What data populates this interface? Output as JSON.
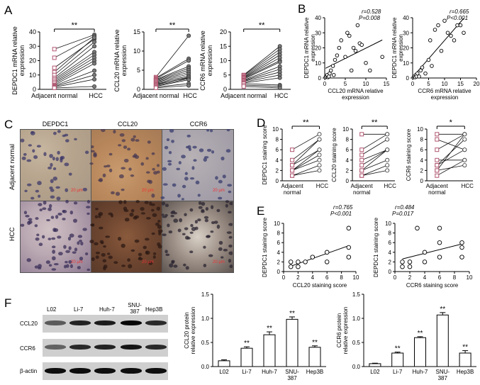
{
  "panels": {
    "A": "A",
    "B": "B",
    "C": "C",
    "D": "D",
    "E": "E",
    "F": "F"
  },
  "sig": {
    "double": "**",
    "single": "*"
  },
  "groups": {
    "adjacent_normal": "Adjacent normal",
    "adjacent": "Adjacent",
    "normal": "normal",
    "hcc": "HCC"
  },
  "colors": {
    "paired_line": "#111111",
    "normal_marker": "#cf8fa8",
    "hcc_marker": "#7a7a7a",
    "bar_fill": "#ffffff"
  },
  "chart_data": [
    {
      "id": "A1",
      "type": "scatter",
      "ylabel_1": "DEPDC1 mRNA relative",
      "ylabel_2": "expression",
      "categories": [
        "Adjacent normal",
        "HCC"
      ],
      "ylim": [
        0,
        40
      ],
      "yticks": [
        0,
        10,
        20,
        30,
        40
      ],
      "significance": "**",
      "pairs": [
        [
          28,
          38
        ],
        [
          22,
          37
        ],
        [
          15,
          35
        ],
        [
          12,
          36
        ],
        [
          10,
          33
        ],
        [
          8,
          30
        ],
        [
          7,
          26
        ],
        [
          6,
          24
        ],
        [
          5,
          22
        ],
        [
          4,
          20
        ],
        [
          3,
          18
        ],
        [
          2.5,
          13
        ],
        [
          2,
          10
        ],
        [
          1.5,
          7
        ],
        [
          1,
          2
        ]
      ]
    },
    {
      "id": "A2",
      "type": "scatter",
      "ylabel_1": "CCL20 mRNA relative",
      "ylabel_2": "expression",
      "categories": [
        "Adjacent normal",
        "HCC"
      ],
      "ylim": [
        0,
        15
      ],
      "yticks": [
        0,
        5,
        10,
        15
      ],
      "significance": "**",
      "pairs": [
        [
          3.2,
          14
        ],
        [
          3,
          8
        ],
        [
          2.8,
          7.5
        ],
        [
          2.6,
          6
        ],
        [
          2.4,
          5.5
        ],
        [
          2.2,
          5
        ],
        [
          2,
          4.5
        ],
        [
          1.8,
          4
        ],
        [
          1.6,
          3.5
        ],
        [
          1.4,
          3
        ],
        [
          1.2,
          3.2
        ],
        [
          1,
          2.8
        ],
        [
          0.8,
          2.5
        ],
        [
          0.6,
          1.5
        ],
        [
          0.4,
          1
        ]
      ],
      "xlabels": [
        "Adjacent normal",
        "HCC"
      ]
    },
    {
      "id": "A3",
      "type": "scatter",
      "ylabel_1": "CCR6 mRNA relative",
      "ylabel_2": "expression",
      "categories": [
        "Adjacent normal",
        "HCC"
      ],
      "ylim": [
        0,
        20
      ],
      "yticks": [
        0,
        5,
        10,
        15,
        20
      ],
      "significance": "**",
      "pairs": [
        [
          5,
          15
        ],
        [
          4.8,
          14
        ],
        [
          4.5,
          13
        ],
        [
          4.2,
          12
        ],
        [
          4,
          11
        ],
        [
          3.8,
          10
        ],
        [
          3.5,
          9.5
        ],
        [
          3.2,
          8
        ],
        [
          3,
          7
        ],
        [
          2.8,
          6
        ],
        [
          2.5,
          5
        ],
        [
          2.2,
          4
        ],
        [
          2,
          1.5
        ],
        [
          1.5,
          1
        ],
        [
          1,
          0.5
        ]
      ]
    },
    {
      "id": "B1",
      "type": "scatter",
      "xlabel_1": "CCL20 mRNA relative",
      "xlabel_2": "expression",
      "ylabel_1": "DEPDC1 mRNA relative",
      "ylabel_2": "expression",
      "r": "r=0.528",
      "p": "P=0.008",
      "xlim": [
        0,
        15
      ],
      "ylim": [
        0,
        40
      ],
      "xticks": [
        0,
        5,
        10,
        15
      ],
      "yticks": [
        0,
        10,
        20,
        30,
        40
      ],
      "x": [
        0.2,
        0.4,
        0.6,
        0.8,
        1,
        1.2,
        1.5,
        2,
        2.2,
        2.5,
        3,
        3.5,
        4,
        5,
        5.5,
        6,
        6.5,
        7,
        7.5,
        8,
        8.5,
        9,
        10,
        11,
        14
      ],
      "y": [
        0.5,
        1,
        2,
        0.5,
        1,
        3,
        5,
        8,
        2,
        12,
        15,
        20,
        25,
        14,
        30,
        28,
        5,
        20,
        18,
        35,
        23,
        22,
        10,
        5,
        14
      ]
    },
    {
      "id": "B2",
      "type": "scatter",
      "xlabel_1": "CCR6 mRNA relative",
      "xlabel_2": "expression",
      "ylabel_1": "DEPDC1 mRNA relative",
      "ylabel_2": "expression",
      "r": "r=0.665",
      "p": "P<0.001",
      "xlim": [
        0,
        20
      ],
      "ylim": [
        0,
        40
      ],
      "xticks": [
        0,
        5,
        10,
        15,
        20
      ],
      "yticks": [
        0,
        10,
        20,
        30,
        40
      ],
      "x": [
        0.3,
        0.5,
        0.8,
        1,
        1.2,
        1.5,
        2,
        2.5,
        3,
        4,
        5,
        5.5,
        6,
        7,
        8,
        9,
        10,
        11,
        12,
        13,
        14,
        15,
        16
      ],
      "y": [
        0.5,
        1,
        0.5,
        2,
        1,
        3,
        1,
        5,
        7,
        3,
        12,
        25,
        8,
        32,
        35,
        18,
        38,
        30,
        28,
        25,
        35,
        35,
        30
      ]
    },
    {
      "id": "D1",
      "type": "scatter",
      "ylabel": "DEPDC1 staining score",
      "categories": [
        "Adjacent",
        "HCC"
      ],
      "xsub": "normal",
      "ylim": [
        0,
        10
      ],
      "yticks": [
        0,
        2,
        4,
        6,
        8,
        10
      ],
      "significance": "**",
      "pairs": [
        [
          6,
          9
        ],
        [
          4,
          8
        ],
        [
          3,
          8
        ],
        [
          3,
          6
        ],
        [
          2,
          6
        ],
        [
          2,
          4
        ],
        [
          1,
          2
        ],
        [
          1,
          3
        ],
        [
          2,
          5
        ]
      ]
    },
    {
      "id": "D2",
      "type": "scatter",
      "ylabel": "CCL20 staining score",
      "categories": [
        "Adjacent",
        "HCC"
      ],
      "xsub": "normal",
      "ylim": [
        0,
        10
      ],
      "yticks": [
        0,
        2,
        4,
        6,
        8,
        10
      ],
      "significance": "**",
      "pairs": [
        [
          9,
          9
        ],
        [
          6,
          9
        ],
        [
          5,
          8
        ],
        [
          4,
          6
        ],
        [
          3,
          6
        ],
        [
          2,
          4
        ],
        [
          1,
          3
        ],
        [
          2,
          6
        ],
        [
          1,
          2
        ]
      ]
    },
    {
      "id": "D3",
      "type": "scatter",
      "ylabel": "CCR6 staining score",
      "categories": [
        "Adjacent",
        "HCC"
      ],
      "xsub": "normal",
      "ylim": [
        0,
        10
      ],
      "yticks": [
        0,
        2,
        4,
        6,
        8,
        10
      ],
      "significance": "*",
      "pairs": [
        [
          9,
          9
        ],
        [
          8,
          6
        ],
        [
          6,
          9
        ],
        [
          4,
          4
        ],
        [
          3,
          6
        ],
        [
          3,
          8
        ],
        [
          2,
          3
        ],
        [
          1,
          4
        ],
        [
          2,
          9
        ]
      ]
    },
    {
      "id": "E1",
      "type": "scatter",
      "xlabel": "CCL20 staining score",
      "ylabel": "DEPDC1 staining score",
      "r": "r=0.765",
      "p": "P<0.001",
      "xlim": [
        0,
        10
      ],
      "ylim": [
        0,
        10
      ],
      "xticks": [
        0,
        2,
        4,
        6,
        8,
        10
      ],
      "yticks": [
        0,
        2,
        4,
        6,
        8,
        10
      ],
      "x": [
        1,
        1,
        2,
        2,
        3,
        4,
        6,
        6,
        9,
        9,
        9
      ],
      "y": [
        1,
        2,
        1,
        2,
        2,
        3,
        2,
        4,
        3,
        5,
        9
      ]
    },
    {
      "id": "E2",
      "type": "scatter",
      "xlabel": "CCR6 staining score",
      "ylabel": "DEPDC1 staining score",
      "r": "r=0.484",
      "p": "P=0.017",
      "xlim": [
        0,
        10
      ],
      "ylim": [
        0,
        10
      ],
      "xticks": [
        0,
        2,
        4,
        6,
        8,
        10
      ],
      "yticks": [
        0,
        2,
        4,
        6,
        8,
        10
      ],
      "x": [
        1,
        1,
        2,
        2,
        3,
        4,
        4,
        6,
        6,
        6,
        9,
        9,
        9
      ],
      "y": [
        1,
        2,
        1,
        2,
        9,
        2,
        4,
        3,
        6,
        9,
        3,
        5,
        6
      ]
    },
    {
      "id": "F1",
      "type": "bar",
      "ylabel_1": "CCL20 protein",
      "ylabel_2": "relative expression",
      "categories": [
        "L02",
        "Li-7",
        "Huh-7",
        "SNU-387",
        "Hep3B"
      ],
      "values": [
        0.12,
        0.38,
        0.66,
        0.98,
        0.4
      ],
      "errors": [
        0.02,
        0.03,
        0.06,
        0.05,
        0.03
      ],
      "significance": [
        "",
        "**",
        "**",
        "**",
        "**"
      ],
      "ylim": [
        0,
        1.5
      ],
      "yticks": [
        "0.0",
        "0.5",
        "1.0",
        "1.5"
      ]
    },
    {
      "id": "F2",
      "type": "bar",
      "ylabel_1": "CCR6 protein",
      "ylabel_2": "relative expression",
      "categories": [
        "L02",
        "Li-7",
        "Huh-7",
        "SNU-387",
        "Hep3B"
      ],
      "values": [
        0.06,
        0.28,
        0.6,
        1.07,
        0.28
      ],
      "errors": [
        0.01,
        0.02,
        0.02,
        0.05,
        0.05
      ],
      "significance": [
        "",
        "**",
        "**",
        "**",
        "**"
      ],
      "ylim": [
        0,
        1.5
      ],
      "yticks": [
        "0.0",
        "0.5",
        "1.0",
        "1.5"
      ]
    }
  ],
  "ihc": {
    "columns": [
      "DEPDC1",
      "CCL20",
      "CCR6"
    ],
    "rows": [
      "Adjacent normal",
      "HCC"
    ],
    "scale": "20 μm"
  },
  "blot": {
    "lanes": [
      "L02",
      "Li-7",
      "Huh-7",
      "SNU-387",
      "Hep3B"
    ],
    "lane2": [
      "",
      "",
      "",
      "387",
      ""
    ],
    "proteins": [
      "CCL20",
      "CCR6",
      "β-actin"
    ],
    "intensity": [
      [
        0.35,
        0.75,
        0.8,
        0.95,
        0.7
      ],
      [
        0.3,
        0.7,
        0.75,
        0.85,
        0.7
      ],
      [
        0.9,
        0.9,
        0.9,
        0.9,
        0.9
      ]
    ]
  }
}
